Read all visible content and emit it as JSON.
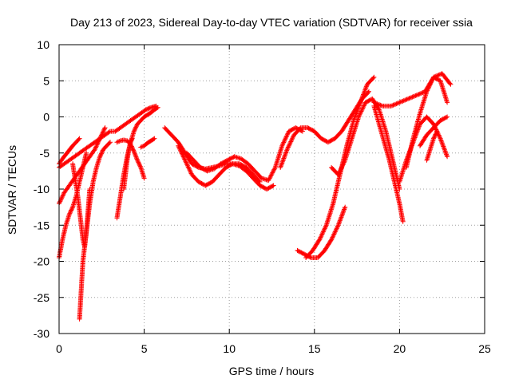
{
  "chart_data": {
    "type": "scatter",
    "title": "Day 213 of 2023, Sidereal Day-to-day VTEC variation (SDTVAR) for receiver ssia",
    "xlabel": "GPS time / hours",
    "ylabel": "SDTVAR / TECUs",
    "xlim": [
      0,
      25
    ],
    "ylim": [
      -30,
      10
    ],
    "xticks": [
      0,
      5,
      10,
      15,
      20,
      25
    ],
    "yticks": [
      -30,
      -25,
      -20,
      -15,
      -10,
      -5,
      0,
      5,
      10
    ],
    "xtick_labels": [
      "0",
      "5",
      "10",
      "15",
      "20",
      "25"
    ],
    "ytick_labels": [
      "-30",
      "-25",
      "-20",
      "-15",
      "-10",
      "-5",
      "0",
      "5",
      "10"
    ],
    "grid": true,
    "marker_color": "#ff0000",
    "marker": "plus",
    "series": [
      {
        "x": [
          0.0,
          0.3,
          0.6,
          0.9,
          1.2,
          1.5,
          1.8,
          2.1,
          2.4,
          2.7,
          3.0,
          3.3,
          3.6,
          3.9,
          4.2,
          4.5,
          4.8,
          5.1,
          5.4,
          5.7
        ],
        "y": [
          -7,
          -6.5,
          -6,
          -5.5,
          -5,
          -4.5,
          -4,
          -3.5,
          -3,
          -2.5,
          -2,
          -2,
          -1.5,
          -1,
          -0.5,
          0,
          0.5,
          1,
          1.3,
          1.5
        ]
      },
      {
        "x": [
          0.0,
          0.2,
          0.4,
          0.6,
          0.8,
          1.0,
          1.2
        ],
        "y": [
          -6.5,
          -5.8,
          -5.2,
          -4.6,
          -4,
          -3.5,
          -3
        ]
      },
      {
        "x": [
          0.0,
          0.3,
          0.6,
          0.9,
          1.2,
          1.5,
          1.8,
          2.1,
          2.4,
          2.7
        ],
        "y": [
          -12,
          -10.5,
          -9.5,
          -8.5,
          -7.5,
          -6.5,
          -5.5,
          -4.5,
          -3,
          -1.5
        ]
      },
      {
        "x": [
          0.0,
          0.2,
          0.4,
          0.6,
          0.8,
          1.0,
          1.2,
          1.4,
          1.6
        ],
        "y": [
          -19.5,
          -17,
          -15,
          -13.5,
          -12.5,
          -11,
          -9,
          -7,
          -5
        ]
      },
      {
        "x": [
          0.8,
          0.9,
          1.0,
          1.1,
          1.2,
          1.3,
          1.4,
          1.5,
          1.6,
          1.7,
          1.8
        ],
        "y": [
          -6.5,
          -8,
          -9.5,
          -11,
          -13,
          -15,
          -17,
          -18,
          -16,
          -13,
          -10
        ]
      },
      {
        "x": [
          1.2,
          1.25,
          1.3,
          1.35,
          1.4,
          1.45,
          1.5,
          1.55,
          1.6,
          1.7,
          1.8,
          2.0,
          2.2,
          2.4,
          2.6,
          2.8,
          3.0
        ],
        "y": [
          -28,
          -26,
          -24,
          -22,
          -20,
          -19,
          -18,
          -17,
          -16,
          -14,
          -12,
          -9,
          -7,
          -5.5,
          -4.5,
          -4,
          -3.5
        ]
      },
      {
        "x": [
          3.4,
          3.6,
          3.8,
          4.0,
          4.2,
          4.4,
          4.6,
          4.8,
          5.0,
          5.2,
          5.4,
          5.6,
          5.8
        ],
        "y": [
          -14,
          -11,
          -8,
          -5.5,
          -3.5,
          -2,
          -1,
          -0.5,
          0,
          0.3,
          0.6,
          1.0,
          1.3
        ]
      },
      {
        "x": [
          3.4,
          3.6,
          3.8,
          4.0,
          4.2,
          4.4,
          4.6,
          4.8,
          5.0
        ],
        "y": [
          -3.5,
          -3.3,
          -3.2,
          -3.3,
          -3.8,
          -4.8,
          -6,
          -7,
          -8.5
        ]
      },
      {
        "x": [
          3.8,
          3.9,
          4.0,
          4.1,
          4.2,
          4.3
        ],
        "y": [
          -10,
          -8,
          -6,
          -4.5,
          -3.5,
          -3
        ]
      },
      {
        "x": [
          4.8,
          5.0,
          5.2,
          5.4,
          5.6
        ],
        "y": [
          -4.2,
          -4,
          -3.6,
          -3.3,
          -3
        ]
      },
      {
        "x": [
          6.2,
          6.6,
          7.0,
          7.4,
          7.8,
          8.2,
          8.6,
          9.0,
          9.4,
          9.8,
          10.2,
          10.6,
          11.0,
          11.4,
          11.8,
          12.2,
          12.6
        ],
        "y": [
          -1.5,
          -2.5,
          -3.5,
          -5,
          -6.5,
          -7,
          -7.2,
          -7,
          -6.8,
          -6.5,
          -6.5,
          -6.8,
          -7.5,
          -8.5,
          -9.5,
          -10,
          -9.5
        ]
      },
      {
        "x": [
          7.0,
          7.4,
          7.8,
          8.2,
          8.6,
          9.0,
          9.4,
          9.8,
          10.2,
          10.6,
          11.0,
          11.4,
          11.8
        ],
        "y": [
          -4,
          -6,
          -8,
          -9,
          -9.5,
          -9,
          -8,
          -7,
          -6.5,
          -6.5,
          -7,
          -8,
          -9
        ]
      },
      {
        "x": [
          7.5,
          7.9,
          8.3,
          8.7,
          9.1,
          9.5,
          9.9,
          10.3,
          10.7,
          11.1,
          11.5,
          11.9,
          12.3,
          12.7,
          13.1,
          13.5,
          13.9,
          14.3
        ],
        "y": [
          -5,
          -6,
          -7,
          -7.5,
          -7.2,
          -6.5,
          -6,
          -5.5,
          -5.8,
          -6.5,
          -7.5,
          -8.5,
          -8.8,
          -7,
          -4,
          -2,
          -1.5,
          -2
        ]
      },
      {
        "x": [
          13.0,
          13.4,
          13.8,
          14.2,
          14.6,
          15.0,
          15.4,
          15.8,
          16.2,
          16.6,
          17.0,
          17.4,
          17.8,
          18.2
        ],
        "y": [
          -7,
          -4.5,
          -2.5,
          -1.5,
          -1.5,
          -2,
          -3,
          -3.5,
          -3,
          -2,
          -0.5,
          1,
          2.5,
          3.5
        ]
      },
      {
        "x": [
          14.0,
          14.4,
          14.8,
          15.2,
          15.6,
          16.0,
          16.4,
          16.8
        ],
        "y": [
          -18.5,
          -19,
          -19.5,
          -19.5,
          -18.5,
          -17,
          -15,
          -12.5
        ]
      },
      {
        "x": [
          14.5,
          14.9,
          15.3,
          15.7,
          16.1,
          16.5,
          16.9,
          17.3,
          17.7,
          18.1,
          18.5
        ],
        "y": [
          -19.5,
          -18.5,
          -17,
          -15,
          -12,
          -8,
          -4,
          -0.5,
          2,
          4.5,
          5.5
        ]
      },
      {
        "x": [
          16.0,
          16.4,
          16.8,
          17.2,
          17.6,
          18.0,
          18.4,
          18.8,
          19.2,
          19.6,
          20.0
        ],
        "y": [
          -7,
          -8,
          -6,
          -3,
          0,
          2,
          2.5,
          1,
          -2,
          -6,
          -10
        ]
      },
      {
        "x": [
          18.5,
          18.8,
          19.1,
          19.4,
          19.7,
          20.0,
          20.2
        ],
        "y": [
          1.5,
          -1,
          -3.5,
          -6,
          -9,
          -12,
          -14.5
        ]
      },
      {
        "x": [
          18.5,
          19.0,
          19.5,
          20.0,
          20.5,
          21.0,
          21.5,
          22.0,
          22.5,
          23.0
        ],
        "y": [
          2,
          1.5,
          1.5,
          2,
          2.5,
          3,
          3.5,
          5.5,
          6,
          4.5
        ]
      },
      {
        "x": [
          20.0,
          20.4,
          20.8,
          21.2,
          21.6,
          22.0,
          22.4,
          22.8
        ],
        "y": [
          -9,
          -6,
          -3.5,
          -1,
          0,
          -1,
          -3,
          -5.5
        ]
      },
      {
        "x": [
          20.4,
          20.8,
          21.2,
          21.6,
          22.0,
          22.4,
          22.8
        ],
        "y": [
          -7,
          -3,
          0.5,
          3.5,
          5.5,
          5,
          2
        ]
      },
      {
        "x": [
          21.2,
          21.6,
          22.0,
          22.4,
          22.8
        ],
        "y": [
          -4,
          -2.5,
          -1.5,
          -0.5,
          0
        ]
      },
      {
        "x": [
          21.6,
          21.8,
          22.0,
          22.2
        ],
        "y": [
          -6,
          -4.5,
          -3,
          -2
        ]
      }
    ]
  }
}
